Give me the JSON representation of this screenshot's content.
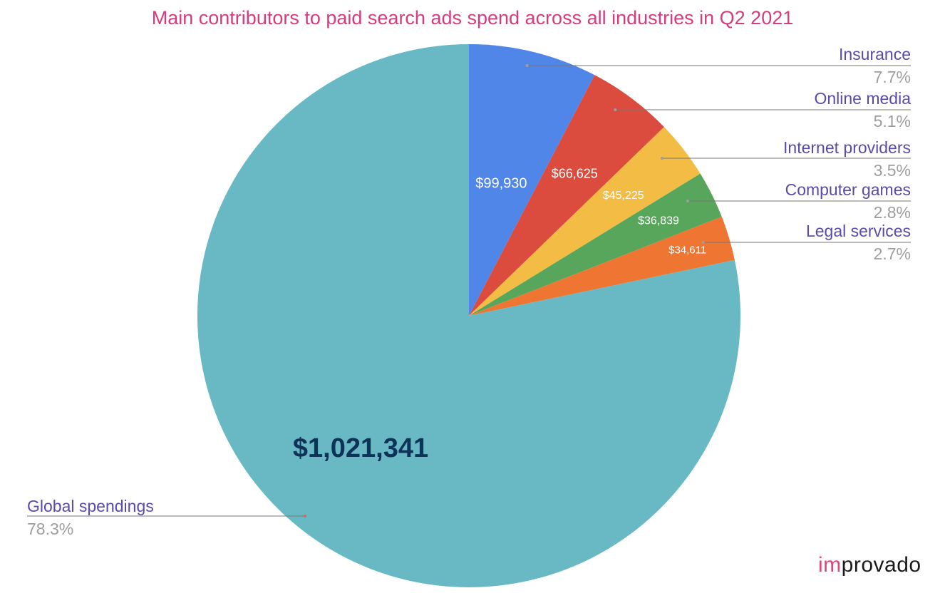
{
  "chart_data": {
    "type": "pie",
    "title": "Main contributors to paid search ads spend across all industries in Q2 2021",
    "slices": [
      {
        "label": "Insurance",
        "value": 99930,
        "value_label": "$99,930",
        "percent_label": "7.7%",
        "color": "#5086e8"
      },
      {
        "label": "Online media",
        "value": 66625,
        "value_label": "$66,625",
        "percent_label": "5.1%",
        "color": "#db4b3e"
      },
      {
        "label": "Internet providers",
        "value": 45225,
        "value_label": "$45,225",
        "percent_label": "3.5%",
        "color": "#f3bd45"
      },
      {
        "label": "Computer games",
        "value": 36839,
        "value_label": "$36,839",
        "percent_label": "2.8%",
        "color": "#58a55c"
      },
      {
        "label": "Legal services",
        "value": 34611,
        "value_label": "$34,611",
        "percent_label": "2.7%",
        "color": "#ef7632"
      },
      {
        "label": "Global spendings",
        "value": 1021341,
        "value_label": "$1,021,341",
        "percent_label": "78.3%",
        "color": "#68b9c4"
      }
    ],
    "legend_position": "right and left of pie, with leader lines",
    "colors": {
      "title": "#d83b7d",
      "label_text": "#5b4aa8",
      "percent_text": "#9e9e9e",
      "big_value_text": "#0f3259"
    }
  },
  "logo": {
    "part1": "im",
    "part2": "provado"
  }
}
